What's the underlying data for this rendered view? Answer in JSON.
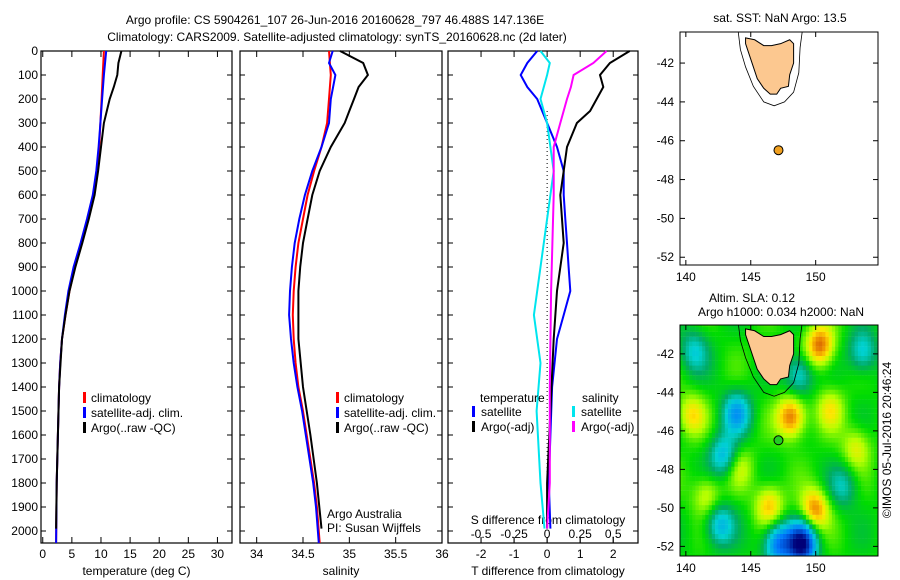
{
  "title_line1": "Argo profile: CS 5904261_107 26-Jun-2016 20160628_797 46.488S 147.136E",
  "title_line2": "Climatology: CARS2009. Satellite-adjusted climatology: synTS_20160628.nc (2d later)",
  "colors": {
    "climatology": "#ff0000",
    "satellite": "#0000ff",
    "argo": "#000000",
    "sat_s": "#00e5ee",
    "argo_s": "#ff00ff",
    "land": "#fcc890",
    "float_sst": "#f0a020",
    "float_sla": "#22cc22"
  },
  "chart_data": [
    {
      "type": "line",
      "xlabel": "temperature (deg C)",
      "ylabel": "",
      "xlim": [
        -0.3,
        32.5
      ],
      "ylim": [
        2050,
        0
      ],
      "xticks": [
        0,
        5,
        10,
        15,
        20,
        25,
        30
      ],
      "yticks": [
        0,
        100,
        200,
        300,
        400,
        500,
        600,
        700,
        800,
        900,
        1000,
        1100,
        1200,
        1300,
        1400,
        1500,
        1600,
        1700,
        1800,
        1900,
        2000
      ],
      "legend": [
        "climatology",
        "satellite-adj. clim.",
        "Argo(..raw -QC)"
      ],
      "series": [
        {
          "name": "climatology",
          "depth": [
            0,
            100,
            200,
            300,
            400,
            500,
            600,
            700,
            800,
            900,
            1000,
            1100,
            1200,
            1300,
            1400,
            1600,
            1800,
            2050
          ],
          "values": [
            10.5,
            10.3,
            10.1,
            9.9,
            9.7,
            9.3,
            8.7,
            7.8,
            6.7,
            5.5,
            4.6,
            3.9,
            3.3,
            3.0,
            2.8,
            2.6,
            2.4,
            2.3
          ]
        },
        {
          "name": "satellite-adj. clim.",
          "depth": [
            0,
            100,
            200,
            300,
            400,
            500,
            600,
            700,
            800,
            900,
            1000,
            1100,
            1200,
            1300,
            1400,
            1600,
            1800,
            2050
          ],
          "values": [
            10.9,
            10.5,
            10.2,
            9.9,
            9.6,
            9.2,
            8.6,
            7.6,
            6.5,
            5.3,
            4.4,
            3.8,
            3.3,
            3.0,
            2.8,
            2.6,
            2.4,
            2.3
          ]
        },
        {
          "name": "Argo(..raw -QC)",
          "depth": [
            0,
            50,
            100,
            150,
            200,
            250,
            300,
            400,
            500,
            600,
            700,
            800,
            900,
            1000,
            1100,
            1200,
            1400,
            1600,
            1800,
            1990
          ],
          "values": [
            13.5,
            13.0,
            12.8,
            12.2,
            11.5,
            11.0,
            10.5,
            10.0,
            9.5,
            8.9,
            7.9,
            6.8,
            5.6,
            4.6,
            3.9,
            3.3,
            2.8,
            2.6,
            2.4,
            2.3
          ]
        }
      ]
    },
    {
      "type": "line",
      "xlabel": "salinity",
      "xlim": [
        33.82,
        36.0
      ],
      "ylim": [
        2050,
        0
      ],
      "xticks": [
        34,
        34.5,
        35,
        35.5,
        36
      ],
      "legend": [
        "climatology",
        "satellite-adj. clim.",
        "Argo(..raw -QC)"
      ],
      "annotation": [
        "Argo Australia",
        "PI: Susan Wijffels"
      ],
      "series": [
        {
          "name": "climatology",
          "depth": [
            0,
            100,
            200,
            300,
            400,
            500,
            600,
            700,
            800,
            900,
            1000,
            1100,
            1200,
            1300,
            1400,
            1500,
            1600,
            1700,
            1800,
            1900,
            2050
          ],
          "values": [
            34.78,
            34.8,
            34.78,
            34.76,
            34.7,
            34.62,
            34.55,
            34.5,
            34.45,
            34.42,
            34.4,
            34.39,
            34.4,
            34.42,
            34.45,
            34.5,
            34.54,
            34.58,
            34.62,
            34.65,
            34.68
          ]
        },
        {
          "name": "satellite-adj. clim.",
          "depth": [
            0,
            50,
            100,
            200,
            300,
            400,
            500,
            600,
            700,
            800,
            900,
            1000,
            1100,
            1200,
            1300,
            1400,
            1500,
            1600,
            1700,
            1800,
            1900,
            2050
          ],
          "values": [
            34.82,
            34.78,
            34.85,
            34.8,
            34.78,
            34.7,
            34.6,
            34.52,
            34.46,
            34.41,
            34.38,
            34.36,
            34.35,
            34.37,
            34.4,
            34.44,
            34.49,
            34.53,
            34.57,
            34.61,
            34.64,
            34.67
          ]
        },
        {
          "name": "Argo(..raw -QC)",
          "depth": [
            0,
            50,
            100,
            150,
            200,
            250,
            300,
            400,
            500,
            600,
            700,
            800,
            900,
            1000,
            1200,
            1400,
            1600,
            1800,
            1990
          ],
          "values": [
            34.9,
            35.15,
            35.2,
            35.1,
            35.05,
            35.0,
            34.95,
            34.8,
            34.68,
            34.6,
            34.55,
            34.5,
            34.47,
            34.45,
            34.45,
            34.5,
            34.58,
            34.65,
            34.7
          ]
        }
      ]
    },
    {
      "type": "line",
      "xlabel": "T difference from climatology",
      "xlabel2": "S difference from climatology",
      "xlim": [
        -3.0,
        2.75
      ],
      "xlim_s": [
        -0.75,
        0.6875
      ],
      "ylim": [
        2050,
        0
      ],
      "xticks": [
        "-2",
        "-1",
        "0",
        "1",
        "2"
      ],
      "xticks_s": [
        "-0.5",
        "-0.25",
        "0",
        "0.25",
        "0.5"
      ],
      "legend": {
        "temperature": "temperature",
        "salinity": "salinity",
        "t_sat": "satellite",
        "t_argo": "Argo(-adj)",
        "s_sat": "satellite",
        "s_argo": "Argo(-adj)"
      },
      "series": [
        {
          "name": "T satellite",
          "units": "T",
          "depth": [
            0,
            50,
            100,
            150,
            200,
            300,
            400,
            500,
            600,
            700,
            800,
            900,
            1000,
            1100,
            1200,
            1400,
            1600,
            1800,
            1990
          ],
          "values": [
            -0.3,
            -0.6,
            -0.8,
            -0.6,
            -0.3,
            0.0,
            0.3,
            0.5,
            0.5,
            0.55,
            0.6,
            0.65,
            0.7,
            0.5,
            0.3,
            0.15,
            0.1,
            0.05,
            0.1
          ]
        },
        {
          "name": "T Argo(-adj)",
          "units": "T",
          "depth": [
            0,
            50,
            100,
            150,
            200,
            250,
            300,
            400,
            500,
            600,
            800,
            1000,
            1200,
            1500,
            1800,
            1990
          ],
          "values": [
            2.5,
            1.9,
            1.6,
            1.7,
            1.5,
            1.3,
            0.9,
            0.6,
            0.5,
            0.4,
            0.5,
            0.3,
            0.2,
            0.1,
            0.0,
            0.0
          ]
        },
        {
          "name": "S satellite",
          "units": "S",
          "depth": [
            0,
            50,
            100,
            200,
            300,
            500,
            700,
            900,
            1100,
            1300,
            1500,
            1800,
            1990
          ],
          "values": [
            -0.05,
            0.02,
            0.0,
            -0.05,
            0.0,
            0.05,
            0.0,
            -0.05,
            -0.1,
            -0.05,
            -0.08,
            -0.05,
            -0.02
          ]
        },
        {
          "name": "S Argo(-adj)",
          "units": "S",
          "depth": [
            0,
            50,
            100,
            150,
            200,
            300,
            400,
            600,
            800,
            1000,
            1400,
            1800,
            1990
          ],
          "values": [
            0.45,
            0.35,
            0.2,
            0.18,
            0.15,
            0.1,
            0.05,
            0.05,
            0.04,
            0.03,
            0.02,
            0.02,
            0.0
          ]
        }
      ]
    },
    {
      "type": "scatter",
      "title": "sat. SST: NaN Argo: 13.5",
      "xticks": [
        140,
        145,
        150
      ],
      "yticks": [
        -42,
        -44,
        -46,
        -48,
        -50,
        -52
      ],
      "float": {
        "lon": 147.136,
        "lat": -46.488
      }
    },
    {
      "type": "heatmap",
      "title_line1": "Altim. SLA: 0.12",
      "title_line2": "Argo h1000: 0.034 h2000: NaN",
      "credit": "©IMOS 05-Jul-2016 20:46:24",
      "xticks": [
        140,
        145,
        150
      ],
      "yticks": [
        -42,
        -44,
        -46,
        -48,
        -50,
        -52
      ],
      "float": {
        "lon": 147.136,
        "lat": -46.488
      }
    }
  ]
}
